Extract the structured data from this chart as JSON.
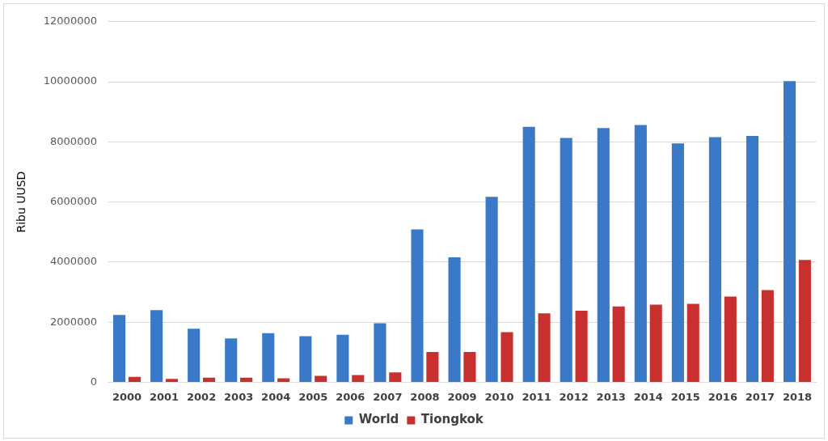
{
  "chart_data": {
    "type": "bar",
    "ylabel": "Ribu UUSD",
    "categories": [
      "2000",
      "2001",
      "2002",
      "2003",
      "2004",
      "2005",
      "2006",
      "2007",
      "2008",
      "2009",
      "2010",
      "2011",
      "2012",
      "2013",
      "2014",
      "2015",
      "2016",
      "2017",
      "2018"
    ],
    "series": [
      {
        "name": "World",
        "color": "#3a78c8",
        "values": [
          2240000,
          2400000,
          1780000,
          1460000,
          1630000,
          1530000,
          1580000,
          1960000,
          5090000,
          4160000,
          6170000,
          8500000,
          8130000,
          8460000,
          8560000,
          7950000,
          8160000,
          8200000,
          10020000
        ]
      },
      {
        "name": "Tiongkok",
        "color": "#c8302f",
        "values": [
          180000,
          110000,
          150000,
          150000,
          130000,
          210000,
          240000,
          330000,
          1010000,
          1010000,
          1670000,
          2290000,
          2380000,
          2520000,
          2580000,
          2610000,
          2850000,
          3070000,
          4070000
        ]
      }
    ],
    "ylim": [
      0,
      12000000
    ],
    "yticks": [
      0,
      2000000,
      4000000,
      6000000,
      8000000,
      10000000,
      12000000
    ],
    "grid": "y",
    "legend": "bottom"
  }
}
